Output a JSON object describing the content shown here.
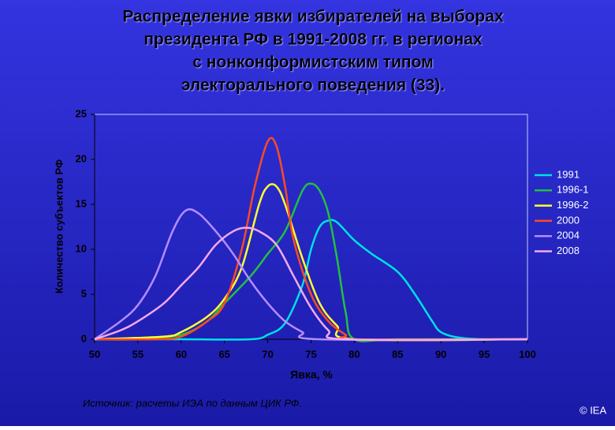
{
  "chart_data": {
    "type": "line",
    "title_lines": [
      "Распределение явки избирателей на выборах",
      "президента РФ в 1991-2008 гг. в регионах",
      "с нонконформистским типом",
      "электорального поведения (33)."
    ],
    "y_label": "Количество субъектов РФ",
    "x_label": "Явка, %",
    "source": "Источник:  расчеты ИЭА по данным ЦИК РФ.",
    "copyright": "© IEA",
    "xlim": [
      50,
      100
    ],
    "xticks": [
      50,
      55,
      60,
      65,
      70,
      75,
      80,
      85,
      90,
      95,
      100
    ],
    "ylim": [
      0,
      25
    ],
    "yticks": [
      0,
      5,
      10,
      15,
      20,
      25
    ],
    "series": [
      {
        "name": "1991",
        "color": "#00e0e8",
        "x": [
          50,
          60,
          68,
          70,
          72,
          74,
          75,
          76,
          77,
          78,
          80,
          82,
          85,
          87,
          89,
          90,
          92,
          95,
          100
        ],
        "values": [
          0,
          0,
          0,
          0.5,
          1.8,
          6,
          10,
          12.5,
          13.2,
          13,
          11,
          9.5,
          7.5,
          5,
          2,
          0.8,
          0.2,
          0,
          0
        ]
      },
      {
        "name": "1996-1",
        "color": "#22c040",
        "x": [
          50,
          55,
          60,
          63,
          65,
          68,
          70,
          72,
          74,
          75,
          76,
          77,
          78,
          79,
          80,
          85,
          100
        ],
        "values": [
          0,
          0,
          0.5,
          2,
          4,
          7,
          9.5,
          12,
          16.5,
          17.3,
          16.5,
          14,
          9,
          3,
          0,
          0,
          0
        ]
      },
      {
        "name": "1996-2",
        "color": "#ffff30",
        "x": [
          50,
          58,
          60,
          63,
          65,
          67,
          69,
          70,
          71,
          72,
          74,
          76,
          78,
          80,
          100
        ],
        "values": [
          0,
          0.3,
          0.8,
          2.5,
          4.5,
          8,
          15,
          17,
          17,
          15,
          9,
          4,
          1.5,
          0,
          0
        ]
      },
      {
        "name": "2000",
        "color": "#ff4a20",
        "x": [
          50,
          57,
          60,
          63,
          65,
          67,
          68.5,
          70,
          71,
          72,
          73,
          75,
          77,
          79,
          80,
          100
        ],
        "values": [
          0,
          0,
          0.3,
          2,
          4,
          10,
          17,
          22,
          21.5,
          17,
          11,
          5,
          2,
          0.5,
          0,
          0
        ]
      },
      {
        "name": "2004",
        "color": "#b48cff",
        "x": [
          50,
          53,
          55,
          57,
          59,
          60.5,
          62,
          64,
          66,
          68,
          70,
          72,
          74,
          76,
          100
        ],
        "values": [
          0,
          2,
          3.8,
          7,
          12,
          14.3,
          14,
          12,
          9.5,
          6.5,
          4,
          2,
          0.8,
          0,
          0
        ]
      },
      {
        "name": "2008",
        "color": "#f4a8f0",
        "x": [
          50,
          53,
          55,
          58,
          60,
          62,
          64,
          66,
          67.5,
          69,
          71,
          73,
          75,
          77,
          79,
          100
        ],
        "values": [
          0,
          1,
          2,
          4,
          6,
          8,
          10.5,
          12,
          12.4,
          12,
          10.5,
          7,
          3.5,
          1,
          0,
          0
        ]
      }
    ]
  }
}
